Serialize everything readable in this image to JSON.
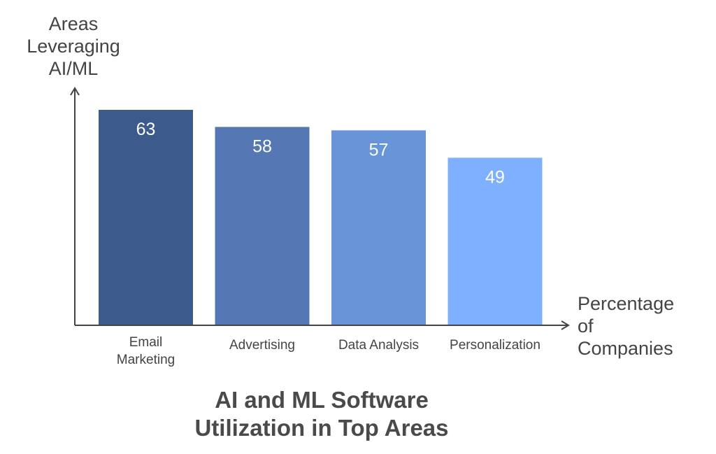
{
  "chart_data": {
    "type": "bar",
    "title": "AI and ML Software\nUtilization in Top Areas",
    "xlabel": "Percentage\nof\nCompanies",
    "ylabel": "Areas\nLeveraging\nAI/ML",
    "categories": [
      "Email\nMarketing",
      "Advertising",
      "Data Analysis",
      "Personalization"
    ],
    "values": [
      63,
      58,
      57,
      49
    ],
    "ylim": [
      0,
      70
    ],
    "grid": false,
    "legend": "none",
    "data_labels": true,
    "colors": {
      "bars": [
        "#3d5a8c",
        "#5577b4",
        "#6894d8",
        "#7eb0ff"
      ],
      "axis": "#444444",
      "data_label": "#ffffff",
      "tick_label": "#444444",
      "title": "#4a4a4a"
    }
  }
}
